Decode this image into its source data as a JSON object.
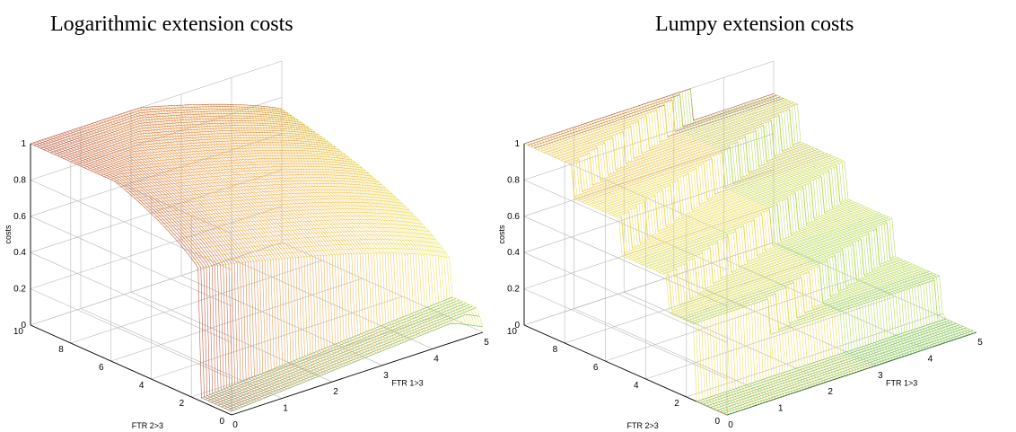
{
  "chart_data": [
    {
      "type": "surface",
      "title": "Logarithmic extension costs",
      "xlabel": "FTR 1>3",
      "ylabel": "FTR 2>3",
      "zlabel": "costs",
      "xlim": [
        0,
        5
      ],
      "ylim": [
        0,
        10
      ],
      "zlim": [
        0,
        1
      ],
      "xticks": [
        0,
        1,
        2,
        3,
        4,
        5
      ],
      "yticks": [
        0,
        2,
        4,
        6,
        8,
        10
      ],
      "zticks": [
        0,
        0.2,
        0.4,
        0.6,
        0.8,
        1
      ],
      "grid": true,
      "colormap": [
        "#2e9e4a",
        "#8ccc54",
        "#e6ea5a",
        "#f5c858",
        "#e89a4c",
        "#a82c2c"
      ],
      "mesh_color_stops": [
        [
          0.0,
          "#2e9e4a"
        ],
        [
          0.3,
          "#8ccc54"
        ],
        [
          0.55,
          "#e6ea5a"
        ],
        [
          0.72,
          "#f5c858"
        ],
        [
          0.88,
          "#e89a4c"
        ],
        [
          1.0,
          "#a82c2c"
        ]
      ],
      "surface_model": "logarithmic"
    },
    {
      "type": "surface",
      "title": "Lumpy extension costs",
      "xlabel": "FTR 1>3",
      "ylabel": "FTR 2>3",
      "zlabel": "costs",
      "xlim": [
        0,
        5
      ],
      "ylim": [
        0,
        10
      ],
      "zlim": [
        0,
        1
      ],
      "xticks": [
        0,
        1,
        2,
        3,
        4,
        5
      ],
      "yticks": [
        0,
        2,
        4,
        6,
        8,
        10
      ],
      "zticks": [
        0,
        0.2,
        0.4,
        0.6,
        0.8,
        1
      ],
      "grid": true,
      "colormap": [
        "#2e9e4a",
        "#8ccc54",
        "#e6ea5a",
        "#f5c858",
        "#e89a4c",
        "#a82c2c"
      ],
      "mesh_color_stops": [
        [
          0.0,
          "#2e9e4a"
        ],
        [
          0.3,
          "#8ccc54"
        ],
        [
          0.55,
          "#e6ea5a"
        ],
        [
          0.72,
          "#f5c858"
        ],
        [
          0.88,
          "#e89a4c"
        ],
        [
          1.0,
          "#a82c2c"
        ]
      ],
      "surface_model": "stepped"
    }
  ]
}
